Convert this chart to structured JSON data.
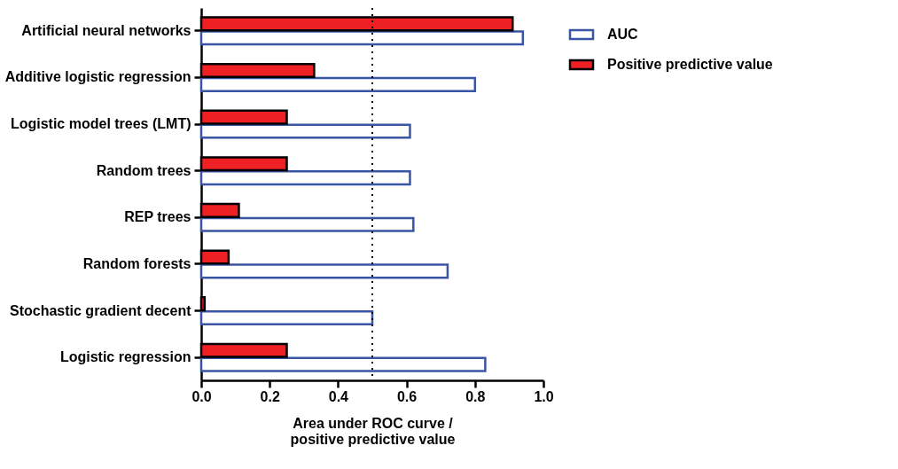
{
  "chart_data": {
    "type": "bar",
    "orientation": "horizontal",
    "categories": [
      "Artificial neural networks",
      "Additive logistic regression",
      "Logistic model trees (LMT)",
      "Random trees",
      "REP trees",
      "Random forests",
      "Stochastic gradient decent",
      "Logistic regression"
    ],
    "series": [
      {
        "name": "AUC",
        "color": "#3b55a5",
        "values": [
          0.94,
          0.8,
          0.61,
          0.61,
          0.62,
          0.72,
          0.5,
          0.83
        ]
      },
      {
        "name": "Positive predictive value",
        "color": "#ee2024",
        "values": [
          0.91,
          0.33,
          0.25,
          0.25,
          0.11,
          0.08,
          0.01,
          0.25
        ]
      }
    ],
    "xlabel": "Area under ROC curve /\npositive predictive value",
    "xlim": [
      0,
      1
    ],
    "xticks": [
      {
        "value": 0,
        "label": "0.0"
      },
      {
        "value": 0.2,
        "label": "0.2"
      },
      {
        "value": 0.4,
        "label": "0.4"
      },
      {
        "value": 0.6,
        "label": "0.6"
      },
      {
        "value": 0.8,
        "label": "0.8"
      },
      {
        "value": 1,
        "label": "1.0"
      }
    ],
    "ref_lines": [
      {
        "axis": "x",
        "value": 0.5,
        "color": "#000000",
        "line_style": "dotted"
      }
    ],
    "grid": false,
    "legend": "top right"
  }
}
